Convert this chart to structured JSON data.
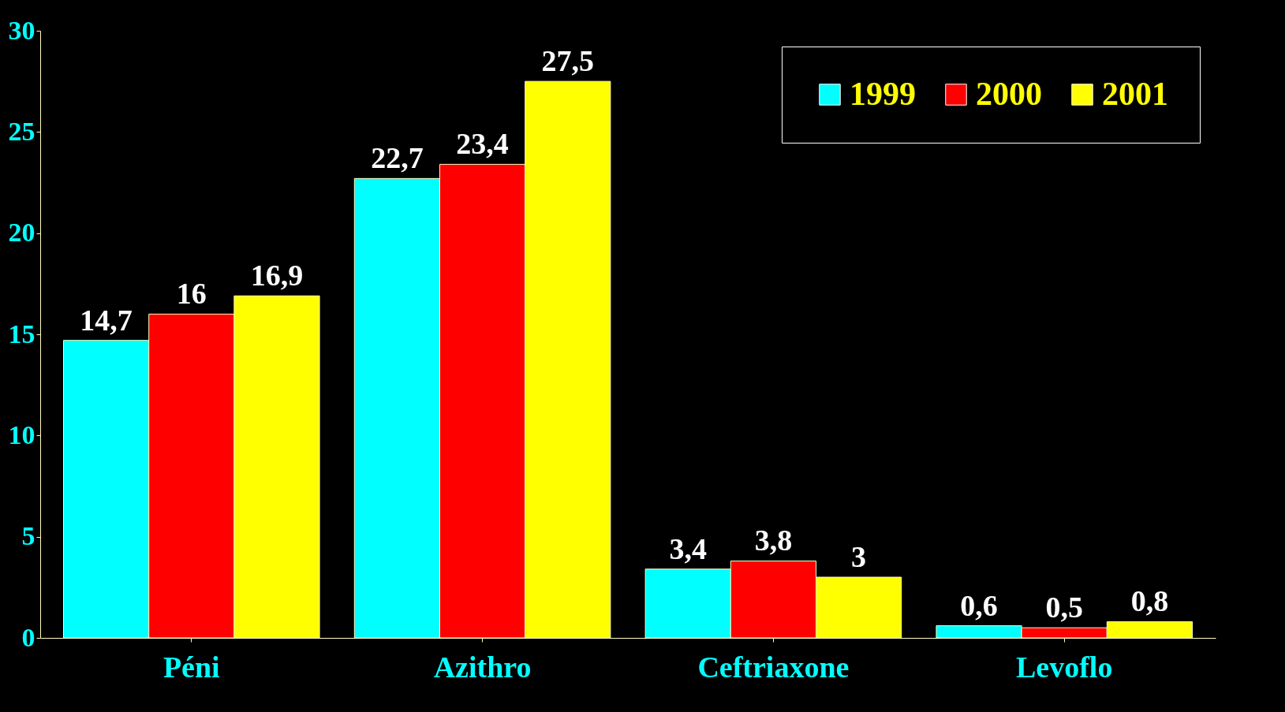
{
  "chart_data": {
    "type": "bar",
    "categories": [
      "Péni",
      "Azithro",
      "Ceftriaxone",
      "Levoflo"
    ],
    "series": [
      {
        "name": "1999",
        "color": "#00ffff",
        "values": [
          14.7,
          22.7,
          3.4,
          0.6
        ],
        "value_labels": [
          "14,7",
          "22,7",
          "3,4",
          "0,6"
        ]
      },
      {
        "name": "2000",
        "color": "#ff0000",
        "values": [
          16,
          23.4,
          3.8,
          0.5
        ],
        "value_labels": [
          "16",
          "23,4",
          "3,8",
          "0,5"
        ]
      },
      {
        "name": "2001",
        "color": "#ffff00",
        "values": [
          16.9,
          27.5,
          3,
          0.8
        ],
        "value_labels": [
          "16,9",
          "27,5",
          "3",
          "0,8"
        ]
      }
    ],
    "ylim": [
      0,
      30
    ],
    "yticks": [
      0,
      5,
      10,
      15,
      20,
      25,
      30
    ],
    "grid": false,
    "legend": "top right"
  }
}
